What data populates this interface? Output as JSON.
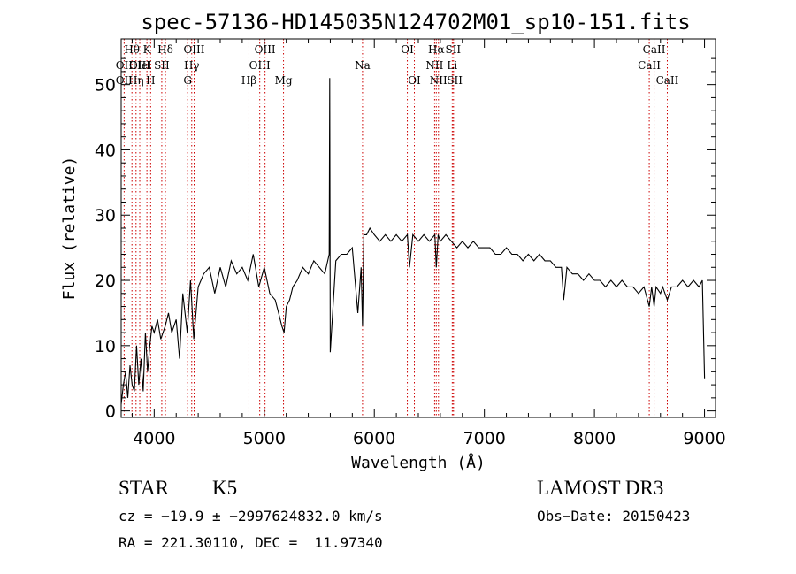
{
  "chart_data": {
    "type": "line",
    "title": "spec-57136-HD145035N124702M01_sp10-151.fits",
    "xlabel": "Wavelength (Å)",
    "ylabel": "Flux (relative)",
    "xlim": [
      3700,
      9100
    ],
    "ylim": [
      -1,
      57
    ],
    "x_ticks": [
      4000,
      5000,
      6000,
      7000,
      8000,
      9000
    ],
    "y_ticks": [
      0,
      10,
      20,
      30,
      40,
      50
    ],
    "x_tick_labels": [
      "4000",
      "5000",
      "6000",
      "7000",
      "8000",
      "9000"
    ],
    "y_tick_labels": [
      "0",
      "10",
      "20",
      "30",
      "40",
      "50"
    ],
    "grid": false,
    "series": [
      {
        "color": "#000000",
        "x": [
          3700,
          3720,
          3740,
          3760,
          3780,
          3800,
          3820,
          3840,
          3860,
          3880,
          3900,
          3920,
          3940,
          3960,
          3980,
          4000,
          4030,
          4060,
          4100,
          4130,
          4160,
          4200,
          4230,
          4260,
          4300,
          4330,
          4360,
          4400,
          4450,
          4500,
          4550,
          4600,
          4650,
          4700,
          4750,
          4800,
          4850,
          4900,
          4950,
          5000,
          5050,
          5100,
          5130,
          5160,
          5180,
          5200,
          5230,
          5260,
          5300,
          5350,
          5400,
          5450,
          5500,
          5550,
          5590,
          5595,
          5600,
          5650,
          5700,
          5750,
          5800,
          5850,
          5880,
          5893,
          5905,
          5930,
          5960,
          6000,
          6050,
          6100,
          6150,
          6200,
          6250,
          6300,
          6320,
          6350,
          6400,
          6450,
          6500,
          6550,
          6563,
          6580,
          6600,
          6650,
          6700,
          6750,
          6800,
          6850,
          6900,
          6950,
          7000,
          7050,
          7100,
          7150,
          7200,
          7250,
          7300,
          7350,
          7400,
          7450,
          7500,
          7550,
          7600,
          7650,
          7700,
          7720,
          7750,
          7800,
          7850,
          7900,
          7950,
          8000,
          8050,
          8100,
          8150,
          8200,
          8250,
          8300,
          8350,
          8400,
          8450,
          8498,
          8520,
          8542,
          8560,
          8600,
          8620,
          8662,
          8700,
          8750,
          8800,
          8850,
          8900,
          8950,
          8980,
          9000
        ],
        "y": [
          1,
          4,
          6,
          2,
          7,
          4,
          3,
          10,
          4,
          8,
          3,
          12,
          6,
          10,
          13,
          12,
          14,
          11,
          13,
          15,
          12,
          14,
          8,
          18,
          12,
          20,
          11,
          19,
          21,
          22,
          18,
          22,
          19,
          23,
          21,
          22,
          20,
          24,
          19,
          22,
          18,
          17,
          15,
          13,
          12,
          16,
          17,
          19,
          20,
          22,
          21,
          23,
          22,
          21,
          24,
          51,
          9,
          23,
          24,
          24,
          25,
          15,
          22,
          13,
          27,
          27,
          28,
          27,
          26,
          27,
          26,
          27,
          26,
          27,
          22,
          27,
          26,
          27,
          26,
          27,
          22,
          27,
          26,
          27,
          26,
          25,
          26,
          25,
          26,
          25,
          25,
          25,
          24,
          24,
          25,
          24,
          24,
          23,
          24,
          23,
          24,
          23,
          23,
          22,
          22,
          17,
          22,
          21,
          21,
          20,
          21,
          20,
          20,
          19,
          20,
          19,
          20,
          19,
          19,
          18,
          19,
          16,
          19,
          16,
          19,
          18,
          19,
          17,
          19,
          19,
          20,
          19,
          20,
          19,
          20,
          5
        ]
      }
    ],
    "annotations": [
      {
        "label": "Hθ",
        "x": 3798,
        "row": 1
      },
      {
        "label": "OII",
        "x": 3727,
        "row": 2
      },
      {
        "label": "OIII",
        "x": 3869,
        "row": 2
      },
      {
        "label": "HeI",
        "x": 3889,
        "row": 2
      },
      {
        "label": "OII",
        "x": 3727,
        "row": 3
      },
      {
        "label": "Hη",
        "x": 3835,
        "row": 3
      },
      {
        "label": "K",
        "x": 3934,
        "row": 1
      },
      {
        "label": "SII",
        "x": 4069,
        "row": 2
      },
      {
        "label": "H",
        "x": 3968,
        "row": 3
      },
      {
        "label": "Hδ",
        "x": 4102,
        "row": 1
      },
      {
        "label": "OIII",
        "x": 4363,
        "row": 1
      },
      {
        "label": "Hγ",
        "x": 4341,
        "row": 2
      },
      {
        "label": "G",
        "x": 4304,
        "row": 3
      },
      {
        "label": "Hβ",
        "x": 4861,
        "row": 3
      },
      {
        "label": "OIII",
        "x": 5007,
        "row": 1
      },
      {
        "label": "OIII",
        "x": 4959,
        "row": 2
      },
      {
        "label": "Mg",
        "x": 5175,
        "row": 3
      },
      {
        "label": "Na",
        "x": 5893,
        "row": 2
      },
      {
        "label": "OI",
        "x": 6300,
        "row": 1
      },
      {
        "label": "OI",
        "x": 6364,
        "row": 3
      },
      {
        "label": "Hα",
        "x": 6563,
        "row": 1
      },
      {
        "label": "SII",
        "x": 6716,
        "row": 1
      },
      {
        "label": "NII",
        "x": 6548,
        "row": 2
      },
      {
        "label": "Li",
        "x": 6708,
        "row": 2
      },
      {
        "label": "NII",
        "x": 6583,
        "row": 3
      },
      {
        "label": "SII",
        "x": 6731,
        "row": 3
      },
      {
        "label": "CaII",
        "x": 8542,
        "row": 1
      },
      {
        "label": "CaII",
        "x": 8498,
        "row": 2
      },
      {
        "label": "CaII",
        "x": 8662,
        "row": 3
      }
    ],
    "line_marker_color": "#cc0000"
  },
  "info": {
    "object_class": "STAR",
    "subclass": "K5",
    "survey": "LAMOST DR3",
    "velocity": "cz = −19.9 ± −2997624832.0 km/s",
    "obs_date": "Obs−Date: 20150423",
    "coords": "RA = 221.30110, DEC =  11.97340"
  }
}
